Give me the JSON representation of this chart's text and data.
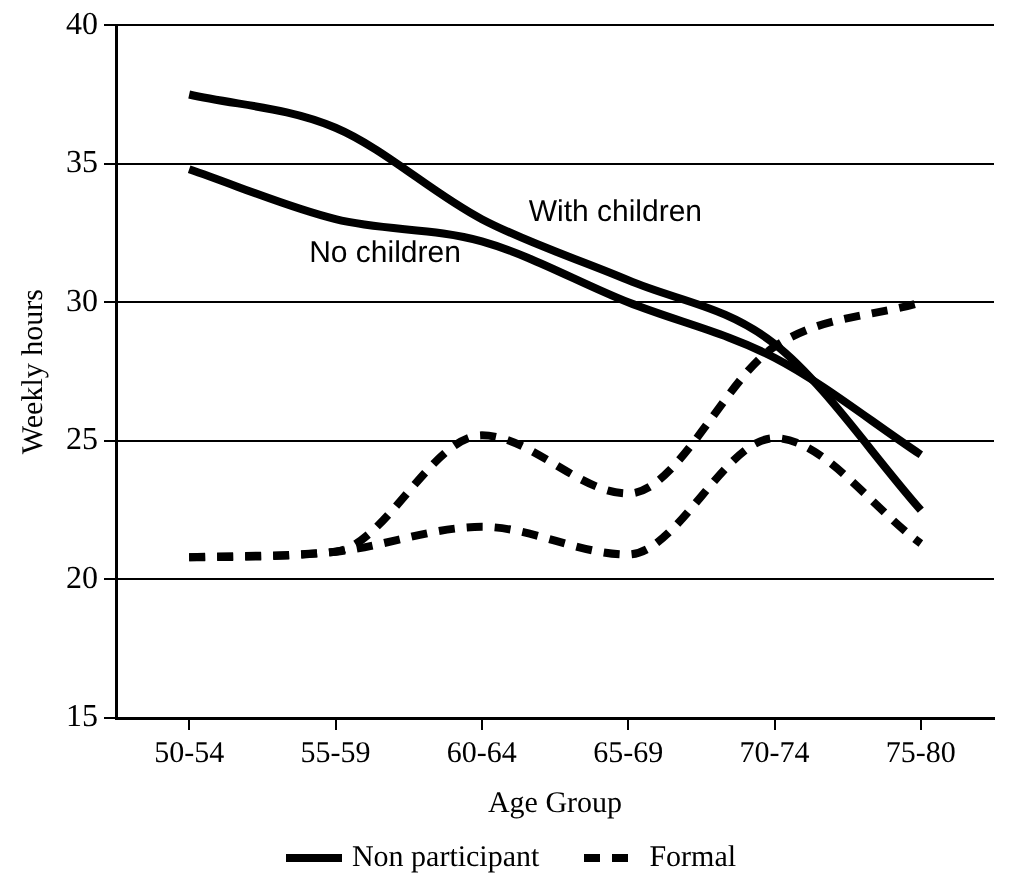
{
  "chart_data": {
    "type": "line",
    "xlabel": "Age Group",
    "ylabel": "Weekly hours",
    "categories": [
      "50-54",
      "55-59",
      "60-64",
      "65-69",
      "70-74",
      "75-80"
    ],
    "series": [
      {
        "name": "Non participant",
        "color": "#000000",
        "line_style": "solid",
        "values": [
          37.5,
          36.3,
          33.0,
          30.8,
          28.5,
          22.5
        ]
      },
      {
        "color": "#000000",
        "line_style": "solid",
        "values": [
          34.8,
          33.0,
          32.2,
          30.0,
          28.0,
          24.5
        ]
      },
      {
        "name": "Formal",
        "color": "#000000",
        "line_style": "dashed",
        "values": [
          20.8,
          21.0,
          25.2,
          23.1,
          28.4,
          30.0
        ]
      },
      {
        "color": "#000000",
        "line_style": "dashed",
        "values": [
          20.8,
          21.0,
          21.9,
          20.9,
          25.1,
          21.3
        ]
      }
    ],
    "annotations": [
      "With children",
      "No children"
    ],
    "ylim": [
      15,
      40
    ],
    "yticks": [
      15,
      20,
      25,
      30,
      35,
      40
    ],
    "grid": "y",
    "legend": "bottom",
    "marker": "none"
  }
}
